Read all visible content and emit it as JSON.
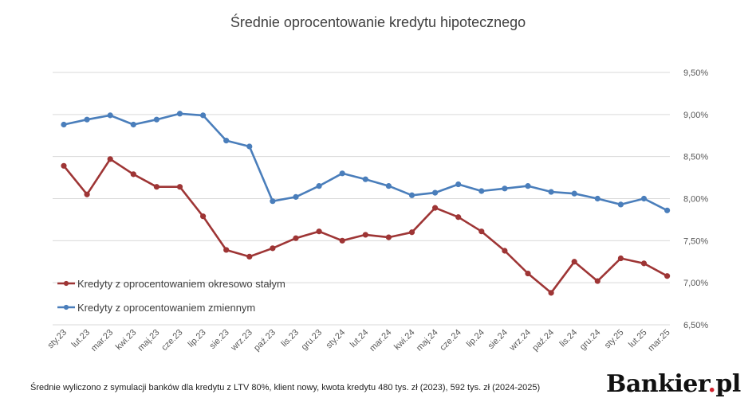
{
  "chart_data": {
    "type": "line",
    "title": "Średnie oprocentowanie kredytu hipotecznego",
    "xlabel": "",
    "ylabel": "",
    "categories": [
      "sty.23",
      "lut.23",
      "mar.23",
      "kwi.23",
      "maj.23",
      "cze.23",
      "lip.23",
      "sie.23",
      "wrz.23",
      "paź.23",
      "lis.23",
      "gru.23",
      "sty.24",
      "lut.24",
      "mar.24",
      "kwi.24",
      "maj.24",
      "cze.24",
      "lip.24",
      "sie.24",
      "wrz.24",
      "paź.24",
      "lis.24",
      "gru.24",
      "sty.25",
      "lut.25",
      "mar.25"
    ],
    "y_ticks": [
      "9,50%",
      "9,00%",
      "8,50%",
      "8,00%",
      "7,50%",
      "7,00%",
      "6,50%"
    ],
    "ylim": [
      6.5,
      9.5
    ],
    "grid": true,
    "legend_position": "lower-left",
    "series": [
      {
        "name": "Kredyty z oprocentowaniem okresowo stałym",
        "color": "#9e3535",
        "values": [
          8.39,
          8.05,
          8.47,
          8.29,
          8.14,
          8.14,
          7.79,
          7.39,
          7.31,
          7.41,
          7.53,
          7.61,
          7.5,
          7.57,
          7.54,
          7.6,
          7.89,
          7.78,
          7.61,
          7.38,
          7.11,
          6.88,
          7.25,
          7.02,
          7.29,
          7.23,
          7.08
        ]
      },
      {
        "name": "Kredyty z oprocentowaniem zmiennym",
        "color": "#4a7ebb",
        "values": [
          8.88,
          8.94,
          8.99,
          8.88,
          8.94,
          9.01,
          8.99,
          8.69,
          8.62,
          7.97,
          8.02,
          8.15,
          8.3,
          8.23,
          8.15,
          8.04,
          8.07,
          8.17,
          8.09,
          8.12,
          8.15,
          8.08,
          8.06,
          8.0,
          7.93,
          8.0,
          7.86
        ]
      }
    ]
  },
  "footnote": "Średnie wyliczono z symulacji banków dla kredytu z LTV 80%, klient nowy, kwota kredytu 480 tys. zł (2023), 592 tys. zł (2024-2025)",
  "brand": {
    "name": "Bankier",
    "dot": ".",
    "suffix": "pl"
  }
}
